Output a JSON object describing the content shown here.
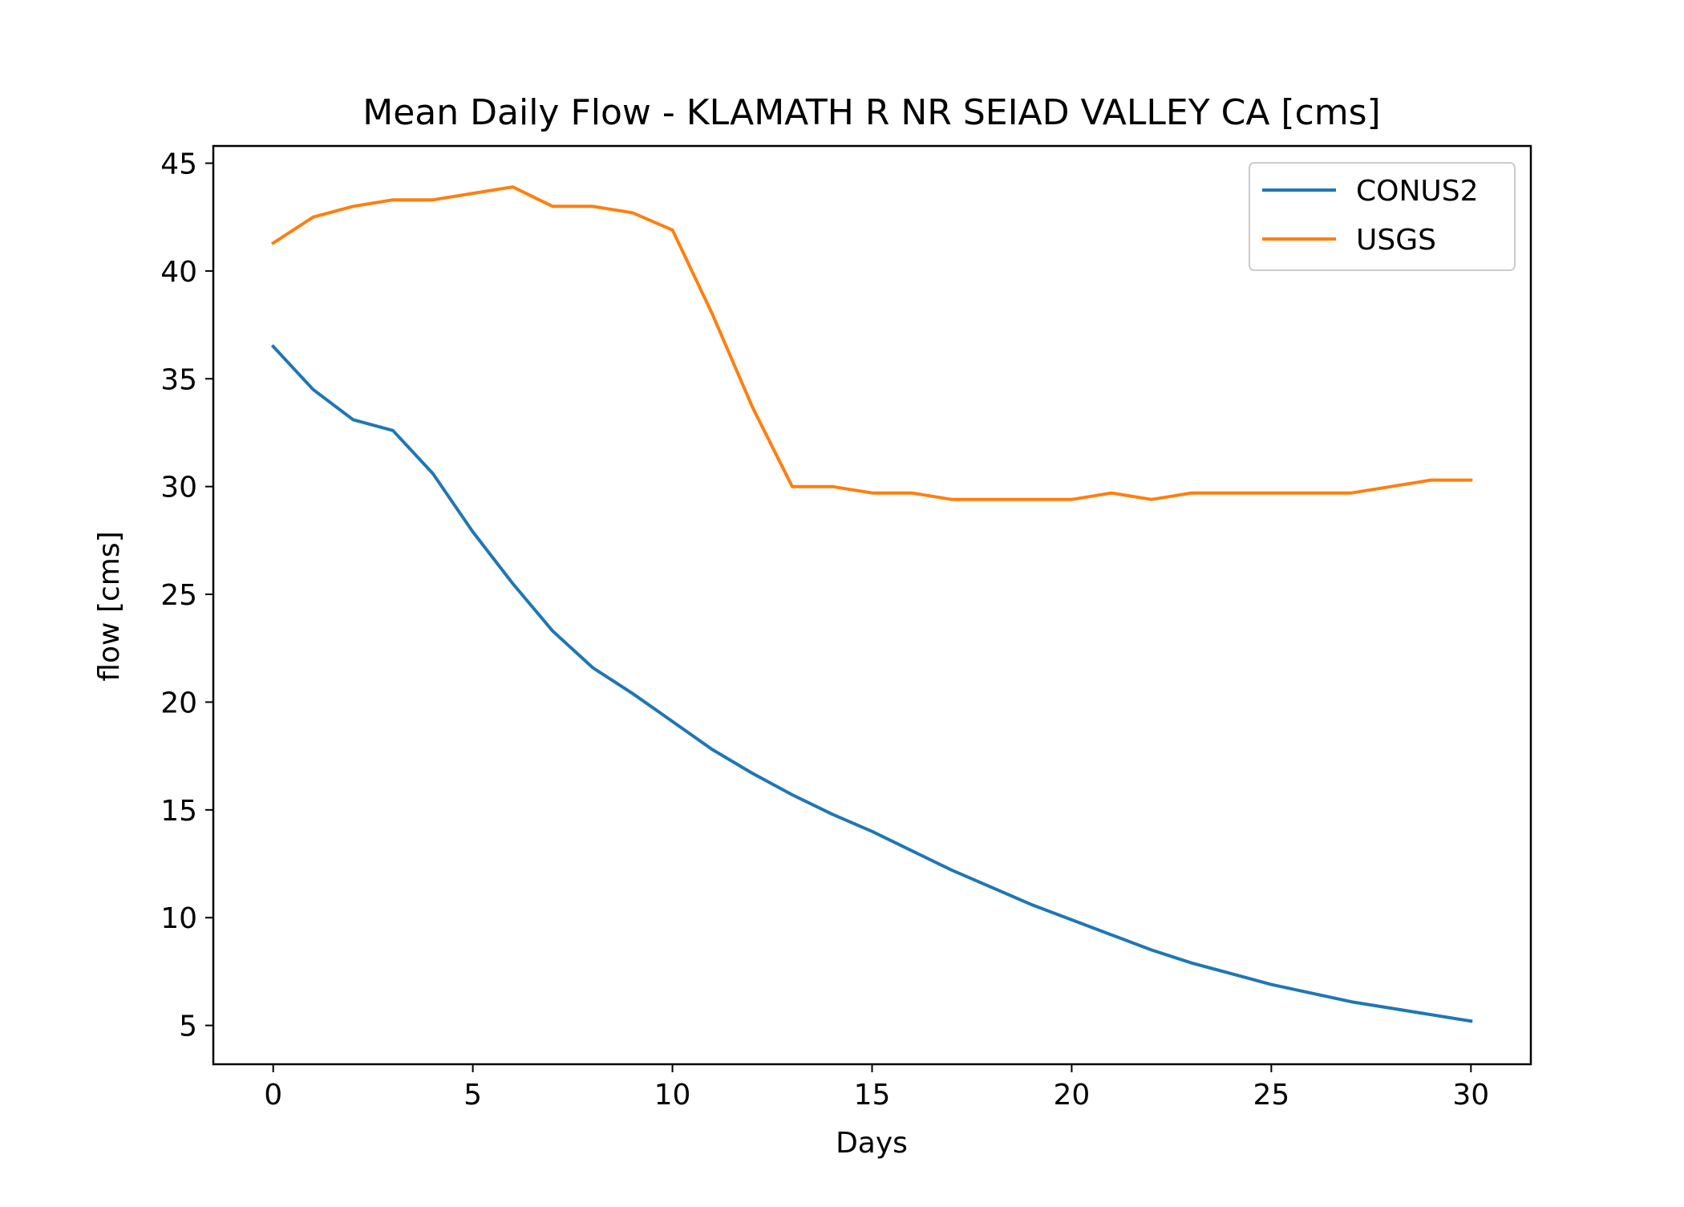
{
  "chart_data": {
    "type": "line",
    "title": "Mean Daily Flow - KLAMATH R NR SEIAD VALLEY CA [cms]",
    "xlabel": "Days",
    "ylabel": "flow [cms]",
    "xlim": [
      -1.5,
      31.5
    ],
    "ylim": [
      3.2,
      45.8
    ],
    "xticks": [
      0,
      5,
      10,
      15,
      20,
      25,
      30
    ],
    "yticks": [
      5,
      10,
      15,
      20,
      25,
      30,
      35,
      40,
      45
    ],
    "grid": false,
    "legend_position": "top-right",
    "x": [
      0,
      1,
      2,
      3,
      4,
      5,
      6,
      7,
      8,
      9,
      10,
      11,
      12,
      13,
      14,
      15,
      16,
      17,
      18,
      19,
      20,
      21,
      22,
      23,
      24,
      25,
      26,
      27,
      28,
      29,
      30
    ],
    "series": [
      {
        "name": "CONUS2",
        "color": "#1f77b4",
        "values": [
          36.5,
          34.5,
          33.1,
          32.6,
          30.6,
          27.9,
          25.5,
          23.3,
          21.6,
          20.4,
          19.1,
          17.8,
          16.7,
          15.7,
          14.8,
          14.0,
          13.1,
          12.2,
          11.4,
          10.6,
          9.9,
          9.2,
          8.5,
          7.9,
          7.4,
          6.9,
          6.5,
          6.1,
          5.8,
          5.5,
          5.2
        ]
      },
      {
        "name": "USGS",
        "color": "#ff7f0e",
        "values": [
          41.3,
          42.5,
          43.0,
          43.3,
          43.3,
          43.6,
          43.9,
          43.0,
          43.0,
          42.7,
          41.9,
          38.0,
          33.7,
          30.0,
          30.0,
          29.7,
          29.7,
          29.4,
          29.4,
          29.4,
          29.4,
          29.7,
          29.4,
          29.7,
          29.7,
          29.7,
          29.7,
          29.7,
          30.0,
          30.3,
          30.3
        ]
      }
    ]
  }
}
